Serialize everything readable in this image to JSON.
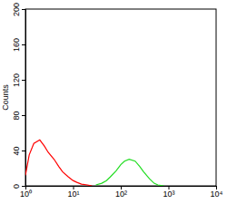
{
  "chart_data": {
    "type": "line",
    "log": "x",
    "y_label": "Counts",
    "x": [
      1,
      1.2,
      1.5,
      2,
      2.5,
      3,
      4,
      5,
      6,
      8,
      10,
      12,
      15,
      20,
      25,
      30,
      40,
      50,
      60,
      80,
      100,
      120,
      150,
      200,
      250,
      300,
      400,
      500,
      600,
      800
    ],
    "series": [
      {
        "color": "#ff0000",
        "values": [
          12,
          35,
          48,
          52,
          45,
          38,
          30,
          22,
          16,
          10,
          6,
          4,
          2,
          1,
          0,
          null,
          null,
          null,
          null,
          null,
          null,
          null,
          null,
          null,
          null,
          null,
          null,
          null,
          null,
          null
        ]
      },
      {
        "color": "#22dd22",
        "values": [
          null,
          null,
          null,
          null,
          null,
          null,
          null,
          null,
          null,
          null,
          null,
          null,
          null,
          null,
          null,
          1,
          3,
          6,
          10,
          17,
          24,
          28,
          30,
          28,
          22,
          16,
          8,
          3,
          1,
          0
        ]
      }
    ],
    "xlim": [
      1,
      10000
    ],
    "xticks": [
      {
        "value": 1,
        "label": "10⁰"
      },
      {
        "value": 10,
        "label": "10¹"
      },
      {
        "value": 100,
        "label": "10²"
      },
      {
        "value": 1000,
        "label": "10³"
      },
      {
        "value": 10000,
        "label": "10⁴"
      }
    ],
    "ylim": [
      0,
      200
    ],
    "yticks": [
      0,
      40,
      80,
      120,
      160,
      200
    ]
  }
}
